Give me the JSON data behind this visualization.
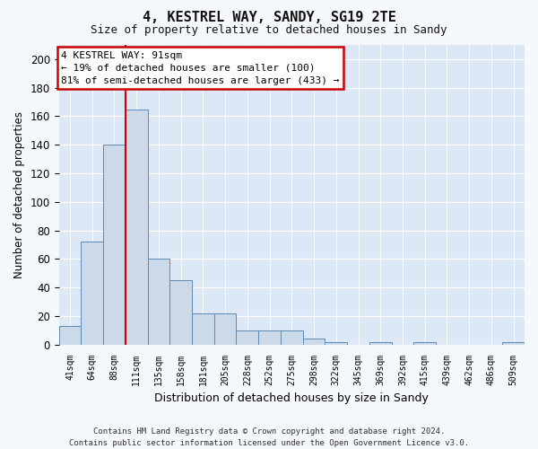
{
  "title": "4, KESTREL WAY, SANDY, SG19 2TE",
  "subtitle": "Size of property relative to detached houses in Sandy",
  "xlabel": "Distribution of detached houses by size in Sandy",
  "ylabel": "Number of detached properties",
  "categories": [
    "41sqm",
    "64sqm",
    "88sqm",
    "111sqm",
    "135sqm",
    "158sqm",
    "181sqm",
    "205sqm",
    "228sqm",
    "252sqm",
    "275sqm",
    "298sqm",
    "322sqm",
    "345sqm",
    "369sqm",
    "392sqm",
    "415sqm",
    "439sqm",
    "462sqm",
    "486sqm",
    "509sqm"
  ],
  "values": [
    13,
    72,
    140,
    165,
    60,
    45,
    22,
    22,
    10,
    10,
    10,
    4,
    2,
    0,
    2,
    0,
    2,
    0,
    0,
    0,
    2
  ],
  "bar_color": "#ccd9e8",
  "bar_edge_color": "#5b8ab5",
  "ylim": [
    0,
    210
  ],
  "yticks": [
    0,
    20,
    40,
    60,
    80,
    100,
    120,
    140,
    160,
    180,
    200
  ],
  "vline_color": "#cc0000",
  "vline_x": 2.5,
  "annotation_text": "4 KESTREL WAY: 91sqm\n← 19% of detached houses are smaller (100)\n81% of semi-detached houses are larger (433) →",
  "annotation_box_facecolor": "#ffffff",
  "annotation_box_edgecolor": "#cc0000",
  "plot_bg_color": "#dce8f5",
  "fig_bg_color": "#f5f8fc",
  "footer": "Contains HM Land Registry data © Crown copyright and database right 2024.\nContains public sector information licensed under the Open Government Licence v3.0."
}
